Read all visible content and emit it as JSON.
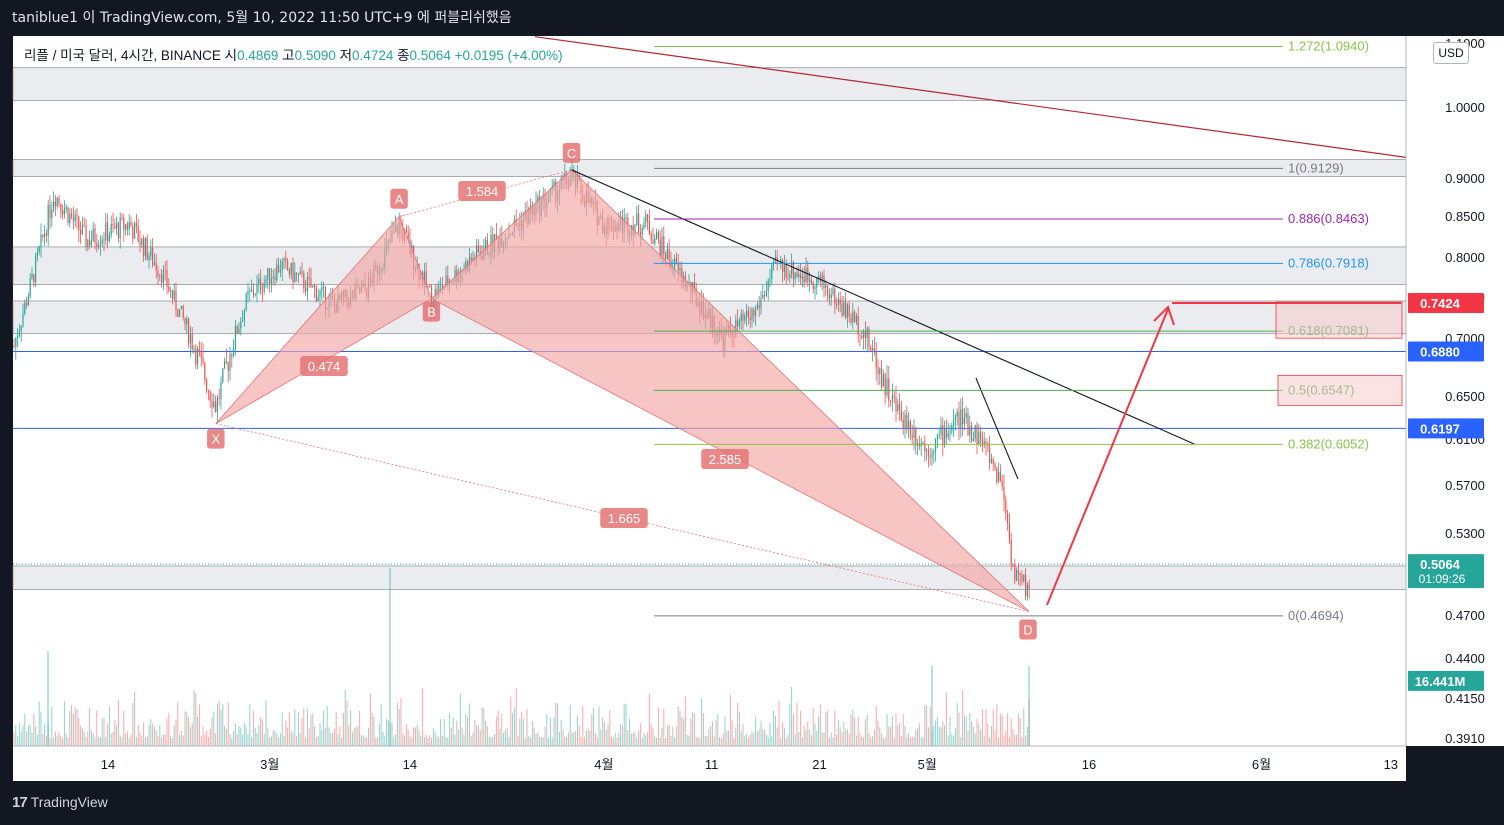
{
  "header": {
    "title": "taniblue1 이 TradingView.com, 5월 10, 2022 11:50 UTC+9 에 퍼블리쉬했음"
  },
  "legend": {
    "symbol": "리플 / 미국 달러, 4시간, BINANCE",
    "open_label": "시",
    "open": "0.4869",
    "high_label": "고",
    "high": "0.5090",
    "low_label": "저",
    "low": "0.4724",
    "close_label": "종",
    "close": "0.5064",
    "change": "+0.0195 (+4.00%)"
  },
  "currency": "USD",
  "footer": {
    "brand": "TradingView",
    "brand_mark": "17"
  },
  "colors": {
    "background": "#ffffff",
    "up": "#26a69a",
    "down": "#ef5350",
    "pattern_fill": "#f4a6a6",
    "fib_grey": "#787b86",
    "fib_purple": "#9c27b0",
    "fib_blue": "#2196f3",
    "fib_green": "#4caf50",
    "fib_lime": "#8bc34a",
    "level_red": "#f23645",
    "level_blue": "#2962ff"
  },
  "chart_data": {
    "type": "candlestick",
    "symbol": "XRPUSD",
    "timeframe": "4h",
    "exchange": "BINANCE",
    "yscale": "log",
    "ylim": [
      0.379,
      1.12
    ],
    "x_ticks": [
      "14",
      "3월",
      "14",
      "4월",
      "11",
      "21",
      "5월",
      "16",
      "6월",
      "13"
    ],
    "y_ticks": [
      "1.1000",
      "1.0000",
      "0.9000",
      "0.8500",
      "0.8000",
      "0.7500",
      "0.7000",
      "0.6500",
      "0.6100",
      "0.5700",
      "0.5300",
      "0.4700",
      "0.4400",
      "0.4150",
      "0.3910"
    ],
    "price_tags": [
      {
        "label": "0.7424",
        "value": 0.7424,
        "color": "#f23645"
      },
      {
        "label": "0.6880",
        "value": 0.688,
        "color": "#2962ff"
      },
      {
        "label": "0.6197",
        "value": 0.6197,
        "color": "#2962ff"
      },
      {
        "label": "0.5064",
        "value": 0.5064,
        "color": "#26a69a",
        "sub": "01:09:26"
      },
      {
        "label": "16.441M",
        "value": 0.4255,
        "color": "#26a69a"
      }
    ],
    "harmonic_pattern": {
      "points": [
        {
          "label": "X",
          "date": "2022-02-24",
          "price": 0.624
        },
        {
          "label": "A",
          "date": "2022-03-13",
          "price": 0.849
        },
        {
          "label": "B",
          "date": "2022-03-16",
          "price": 0.748
        },
        {
          "label": "C",
          "date": "2022-03-29",
          "price": 0.911
        },
        {
          "label": "D",
          "date": "2022-05-10",
          "price": 0.4724
        }
      ],
      "ratios": [
        "0.474",
        "1.584",
        "2.585",
        "1.665"
      ]
    },
    "fibonacci": [
      {
        "ratio": "1.272",
        "price": "1.0940",
        "label": "1.272(1.0940)"
      },
      {
        "ratio": "1",
        "price": "0.9129",
        "label": "1(0.9129)"
      },
      {
        "ratio": "0.886",
        "price": "0.8463",
        "label": "0.886(0.8463)"
      },
      {
        "ratio": "0.786",
        "price": "0.7918",
        "label": "0.786(0.7918)"
      },
      {
        "ratio": "0.618",
        "price": "0.7081",
        "label": "0.618(0.7081)"
      },
      {
        "ratio": "0.5",
        "price": "0.6547",
        "label": "0.5(0.6547)"
      },
      {
        "ratio": "0.382",
        "price": "0.6052",
        "label": "0.382(0.6052)"
      },
      {
        "ratio": "0",
        "price": "0.4694",
        "label": "0(0.4694)"
      }
    ],
    "zones": [
      {
        "from": 1.01,
        "to": 1.06
      },
      {
        "from": 0.902,
        "to": 0.925
      },
      {
        "from": 0.765,
        "to": 0.812
      },
      {
        "from": 0.705,
        "to": 0.745
      },
      {
        "from": 0.488,
        "to": 0.505
      }
    ],
    "horizontal_levels": [
      0.688,
      0.6197
    ],
    "target": 0.7424,
    "grid": false
  }
}
